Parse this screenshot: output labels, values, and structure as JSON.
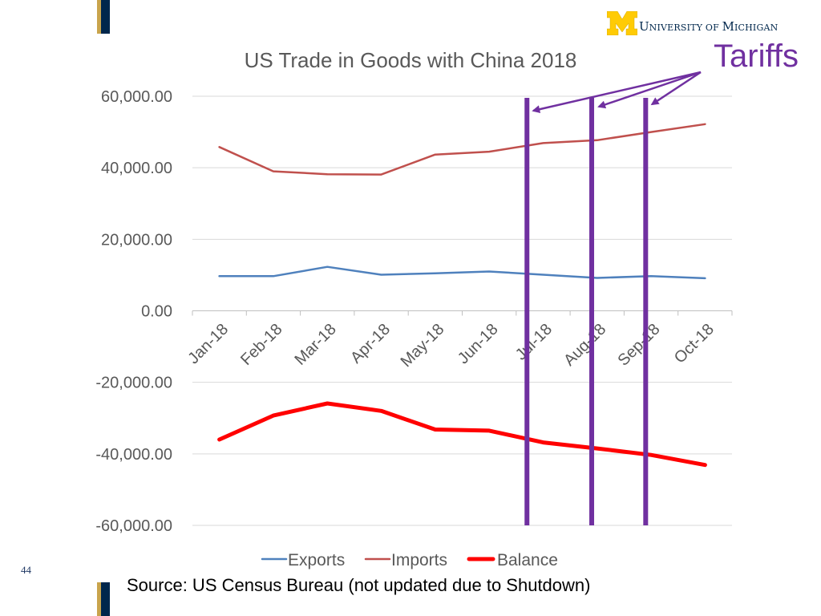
{
  "header": {
    "brand_cap": "U",
    "brand_rest_1": "NIVERSITY OF ",
    "brand_cap_2": "M",
    "brand_rest_2": "ICHIGAN",
    "brand_colors": {
      "maize": "#ffcb05",
      "blue": "#00274c"
    }
  },
  "annotation": {
    "text": "Tariffs",
    "color": "#7030a0"
  },
  "footer": {
    "slide_number": "44",
    "source": "Source:  US Census Bureau (not updated due to Shutdown)"
  },
  "chart_data": {
    "type": "line",
    "title": "US Trade in Goods with China 2018",
    "xlabel": "",
    "ylabel": "",
    "categories": [
      "Jan-18",
      "Feb-18",
      "Mar-18",
      "Apr-18",
      "May-18",
      "Jun-18",
      "Jul-18",
      "Aug-18",
      "Sep-18",
      "Oct-18"
    ],
    "ylim": [
      -60000,
      60000
    ],
    "yticks": [
      60000,
      40000,
      20000,
      0,
      -20000,
      -40000,
      -60000
    ],
    "ytick_labels": [
      "60,000.00",
      "40,000.00",
      "20,000.00",
      "0.00",
      "-20,000.00",
      "-40,000.00",
      "-60,000.00"
    ],
    "grid": true,
    "legend_position": "bottom",
    "series": [
      {
        "name": "Exports",
        "color": "#4f81bd",
        "values": [
          9700,
          9700,
          12300,
          10100,
          10500,
          11000,
          10100,
          9200,
          9700,
          9100
        ]
      },
      {
        "name": "Imports",
        "color": "#c0504d",
        "values": [
          45800,
          39000,
          38200,
          38100,
          43700,
          44500,
          46900,
          47700,
          50000,
          52200
        ]
      },
      {
        "name": "Balance",
        "color": "#ff0000",
        "values": [
          -36000,
          -29300,
          -25900,
          -28000,
          -33200,
          -33500,
          -36800,
          -38500,
          -40300,
          -43100
        ]
      }
    ],
    "tariff_markers": {
      "color": "#7030a0",
      "positions": [
        6.2,
        7.4,
        8.4
      ]
    }
  }
}
